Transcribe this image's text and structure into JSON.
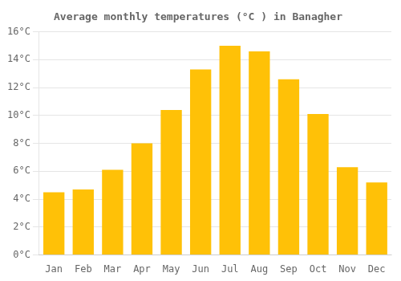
{
  "chart_data": {
    "type": "bar",
    "title": "Average monthly temperatures (°C ) in Banagher",
    "categories": [
      "Jan",
      "Feb",
      "Mar",
      "Apr",
      "May",
      "Jun",
      "Jul",
      "Aug",
      "Sep",
      "Oct",
      "Nov",
      "Dec"
    ],
    "values": [
      4.5,
      4.7,
      6.1,
      8.0,
      10.4,
      13.3,
      15.0,
      14.6,
      12.6,
      10.1,
      6.3,
      5.2
    ],
    "color": "#FFC107",
    "ylim": [
      0,
      16
    ],
    "yticks": [
      {
        "value": 0,
        "label": "0°C"
      },
      {
        "value": 2,
        "label": "2°C"
      },
      {
        "value": 4,
        "label": "4°C"
      },
      {
        "value": 6,
        "label": "6°C"
      },
      {
        "value": 8,
        "label": "8°C"
      },
      {
        "value": 10,
        "label": "10°C"
      },
      {
        "value": 12,
        "label": "12°C"
      },
      {
        "value": 14,
        "label": "14°C"
      },
      {
        "value": 16,
        "label": "16°C"
      }
    ],
    "grid": "y"
  }
}
